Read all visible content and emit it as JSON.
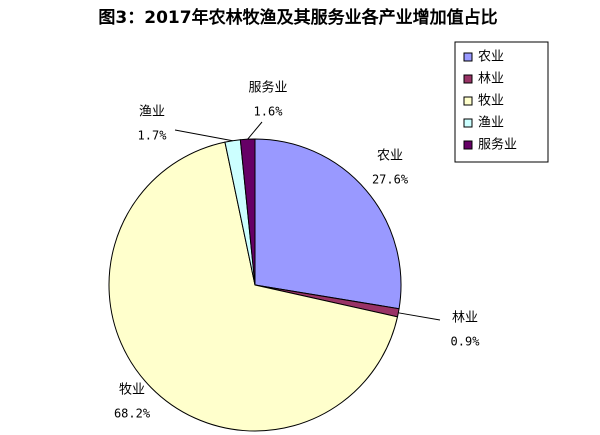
{
  "chart_data": {
    "type": "pie",
    "title": "图3：2017年农林牧渔及其服务业各产业增加值占比",
    "categories": [
      "农业",
      "林业",
      "牧业",
      "渔业",
      "服务业"
    ],
    "values": [
      27.6,
      0.9,
      68.2,
      1.7,
      1.6
    ],
    "value_labels": [
      "27.6%",
      "0.9%",
      "68.2%",
      "1.7%",
      "1.6%"
    ],
    "colors": [
      "#9999ff",
      "#993366",
      "#ffffcc",
      "#ccffff",
      "#660066"
    ],
    "legend": "upper right"
  }
}
